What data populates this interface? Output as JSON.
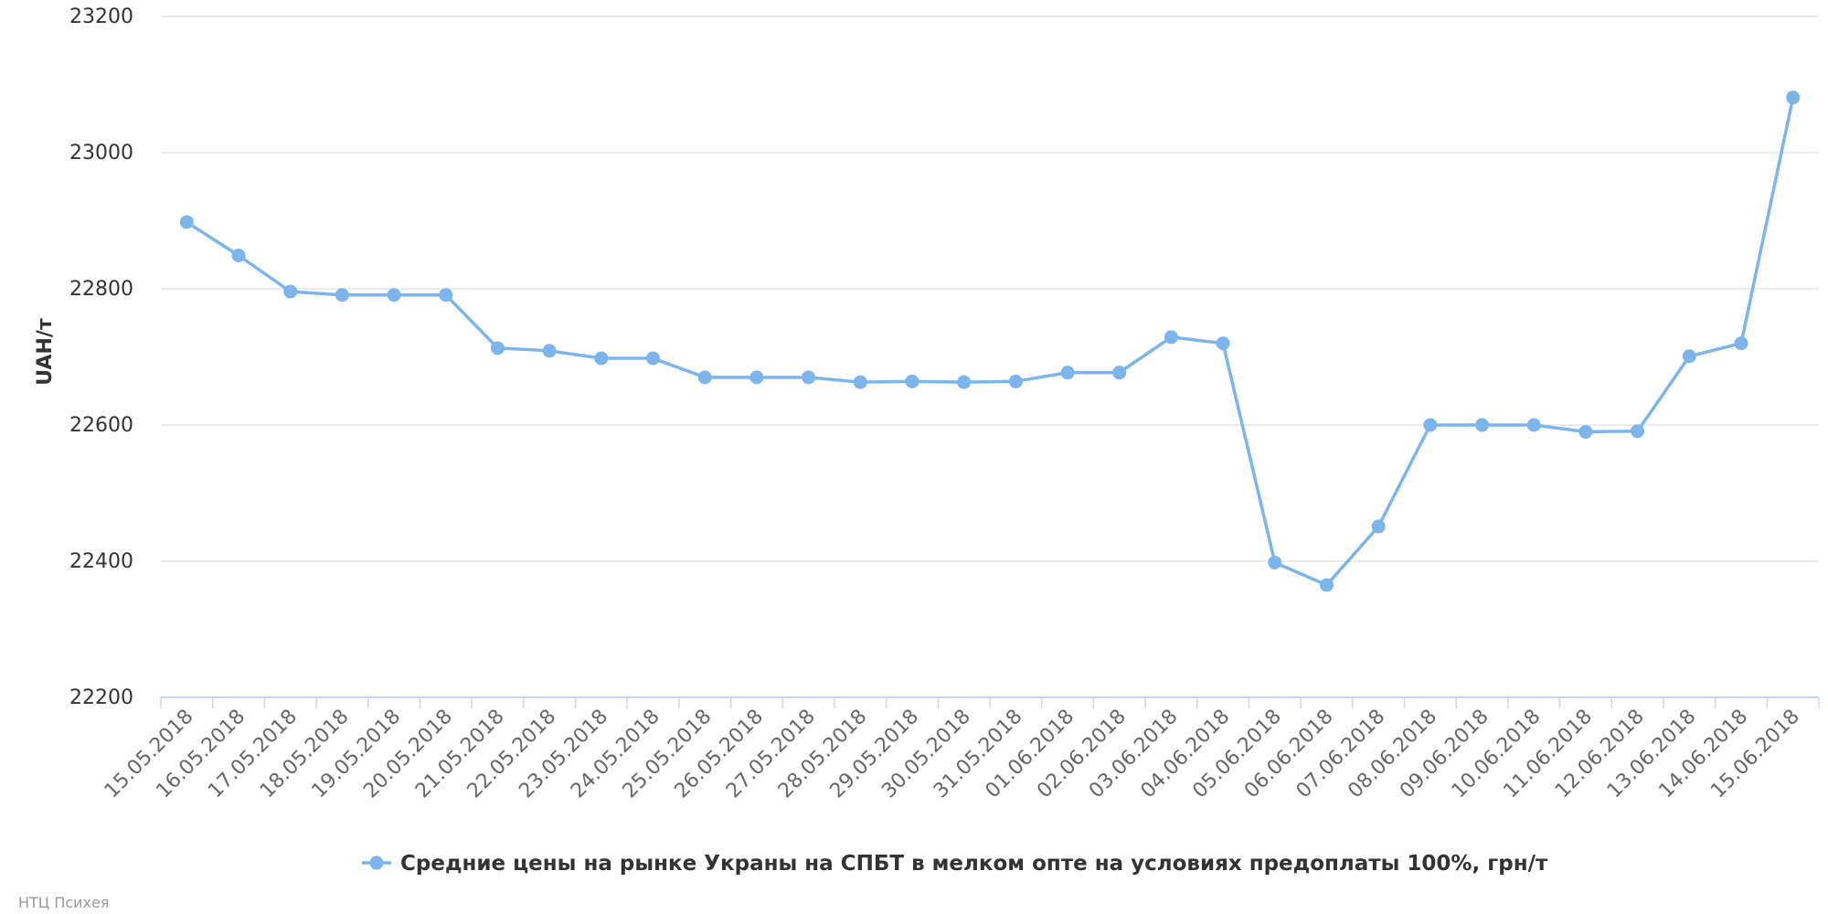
{
  "chart_data": {
    "type": "line",
    "ylabel": "UAH/т",
    "ylim": [
      22200,
      23200
    ],
    "yticks": [
      22200,
      22400,
      22600,
      22800,
      23000,
      23200
    ],
    "grid": true,
    "legend_position": "bottom-center",
    "categories": [
      "15.05.2018",
      "16.05.2018",
      "17.05.2018",
      "18.05.2018",
      "19.05.2018",
      "20.05.2018",
      "21.05.2018",
      "22.05.2018",
      "23.05.2018",
      "24.05.2018",
      "25.05.2018",
      "26.05.2018",
      "27.05.2018",
      "28.05.2018",
      "29.05.2018",
      "30.05.2018",
      "31.05.2018",
      "01.06.2018",
      "02.06.2018",
      "03.06.2018",
      "04.06.2018",
      "05.06.2018",
      "06.06.2018",
      "07.06.2018",
      "08.06.2018",
      "09.06.2018",
      "10.06.2018",
      "11.06.2018",
      "12.06.2018",
      "13.06.2018",
      "14.06.2018",
      "15.06.2018"
    ],
    "series": [
      {
        "name": "Средние цены на рынке Украны на СПБТ в мелком опте на условиях предоплаты 100%, грн/т",
        "color": "#7cb5ec",
        "values": [
          22898,
          22849,
          22796,
          22791,
          22791,
          22791,
          22713,
          22709,
          22698,
          22698,
          22670,
          22670,
          22670,
          22663,
          22664,
          22663,
          22664,
          22677,
          22677,
          22729,
          22720,
          22398,
          22365,
          22451,
          22600,
          22600,
          22600,
          22590,
          22591,
          22701,
          22720,
          23081
        ]
      }
    ]
  },
  "credit": "НТЦ Психея",
  "colors": {
    "grid": "#e6e6e6",
    "axis": "#ccd6eb",
    "text": "#333333"
  }
}
